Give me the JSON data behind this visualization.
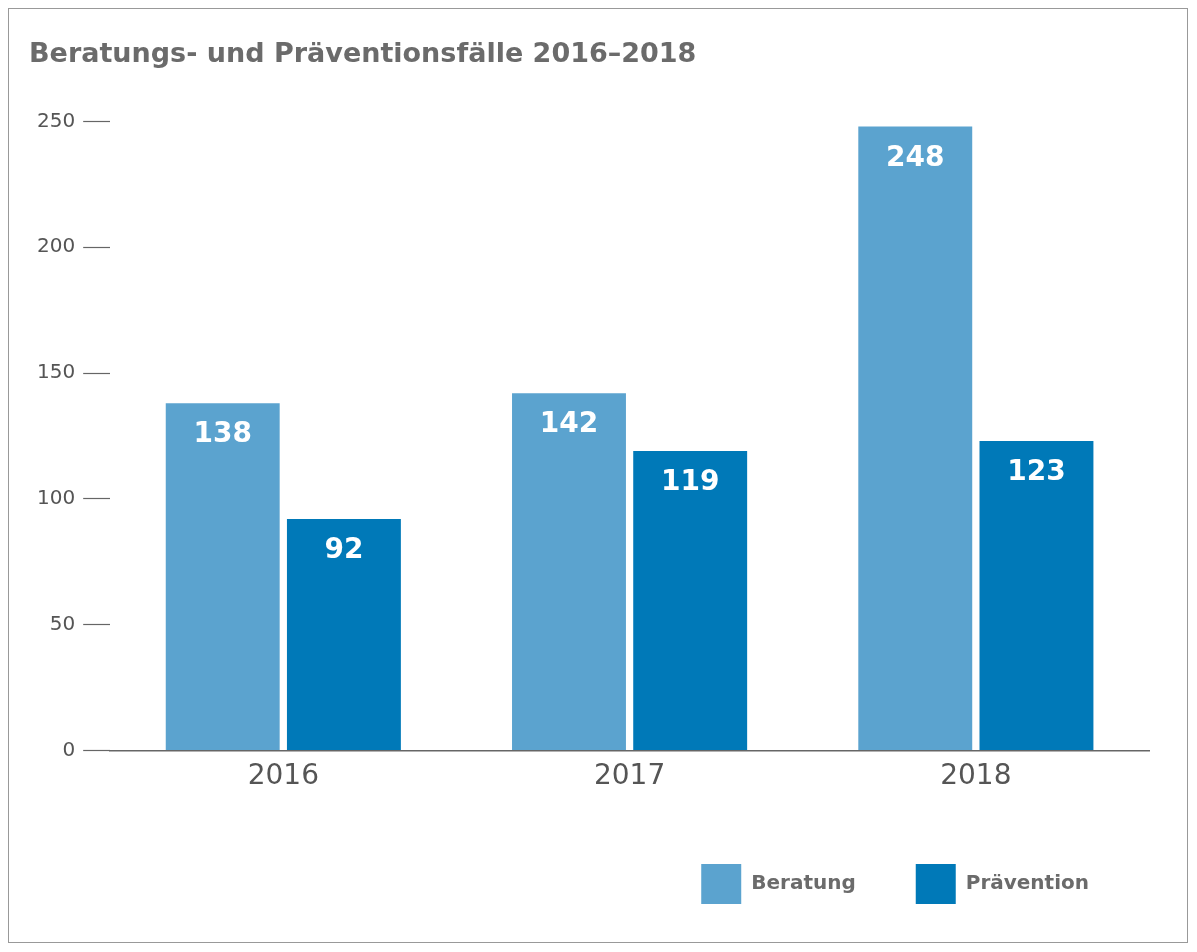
{
  "chart_data": {
    "type": "bar",
    "title": "Beratungs- und Präventionsfälle 2016–2018",
    "categories": [
      "2016",
      "2017",
      "2018"
    ],
    "series": [
      {
        "name": "Beratung",
        "color": "#5ba3cf",
        "values": [
          138,
          142,
          248
        ]
      },
      {
        "name": "Prävention",
        "color": "#0079b8",
        "values": [
          92,
          119,
          123
        ]
      }
    ],
    "ylim": [
      0,
      250
    ],
    "yticks": [
      0,
      50,
      100,
      150,
      200,
      250
    ],
    "grid": false,
    "legend": "bottom right",
    "data_labels": true
  }
}
